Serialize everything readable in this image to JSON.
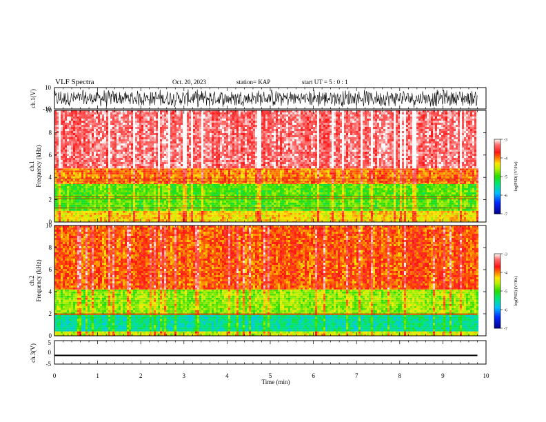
{
  "header": {
    "title": "VLF Spectra",
    "date": "Oct. 20, 2023",
    "station": "station= KAP",
    "start": "start  UT =   5 : 0  : 1"
  },
  "chart_data": [
    {
      "type": "line",
      "name": "ch1-waveform",
      "ylabel": "ch.1(V)",
      "ylim": [
        -10,
        10
      ],
      "yticks": [
        "10",
        "-10"
      ],
      "xlim": [
        0,
        10
      ],
      "description_level": "dense black noise trace roughly between -9 and 9 V",
      "color": "#000000"
    },
    {
      "type": "heatmap",
      "name": "ch1-spectrogram",
      "ylabel": "ch.1\nFrequency  (kHz)",
      "ylim": [
        0,
        10
      ],
      "yticks": [
        "0",
        "2",
        "4",
        "6",
        "8",
        "10"
      ],
      "xlim": [
        0,
        9.8
      ],
      "bands": [
        {
          "f_low": 0.0,
          "f_high": 1.0,
          "level": -4.3
        },
        {
          "f_low": 1.0,
          "f_high": 3.4,
          "level": -4.9
        },
        {
          "f_low": 3.4,
          "f_high": 4.8,
          "level": -4.0
        },
        {
          "f_low": 4.8,
          "f_high": 10.0,
          "level": -3.3
        }
      ],
      "lines_khz": [
        1.25,
        2.1,
        2.3,
        3.65,
        3.85
      ],
      "colorbar": {
        "label": "log(PSD) (V²/Hz)",
        "min": -7,
        "max": -3,
        "ticks": [
          "-3",
          "-4",
          "-5",
          "-6",
          "-7"
        ]
      }
    },
    {
      "type": "heatmap",
      "name": "ch2-spectrogram",
      "ylabel": "ch.2\nFrequency  (kHz)",
      "ylim": [
        0,
        10
      ],
      "yticks": [
        "0",
        "2",
        "4",
        "6",
        "8",
        "10"
      ],
      "xlim": [
        0,
        9.8
      ],
      "bands": [
        {
          "f_low": 0.0,
          "f_high": 0.4,
          "level": -4.5
        },
        {
          "f_low": 0.4,
          "f_high": 1.9,
          "level": -5.5
        },
        {
          "f_low": 1.9,
          "f_high": 4.2,
          "level": -4.7
        },
        {
          "f_low": 4.2,
          "f_high": 10.0,
          "level": -3.9
        }
      ],
      "lines_khz": [
        1.9,
        2.0
      ],
      "colorbar": {
        "label": "log(PSD) (V²/Hz)",
        "min": -7,
        "max": -3,
        "ticks": [
          "-3",
          "-4",
          "-5",
          "-6",
          "-7"
        ]
      }
    },
    {
      "type": "line",
      "name": "ch3-waveform",
      "ylabel": "ch.3(V)",
      "ylim": [
        -5,
        5
      ],
      "yticks": [
        "5",
        "0",
        "-5"
      ],
      "xlim": [
        0,
        10
      ],
      "band": [
        -1.6,
        -1.0
      ],
      "color": "#000000"
    }
  ],
  "xaxis": {
    "label": "Time  (min)",
    "ticks": [
      "0",
      "1",
      "2",
      "3",
      "4",
      "5",
      "6",
      "7",
      "8",
      "9",
      "10"
    ],
    "range": [
      0,
      10
    ]
  }
}
